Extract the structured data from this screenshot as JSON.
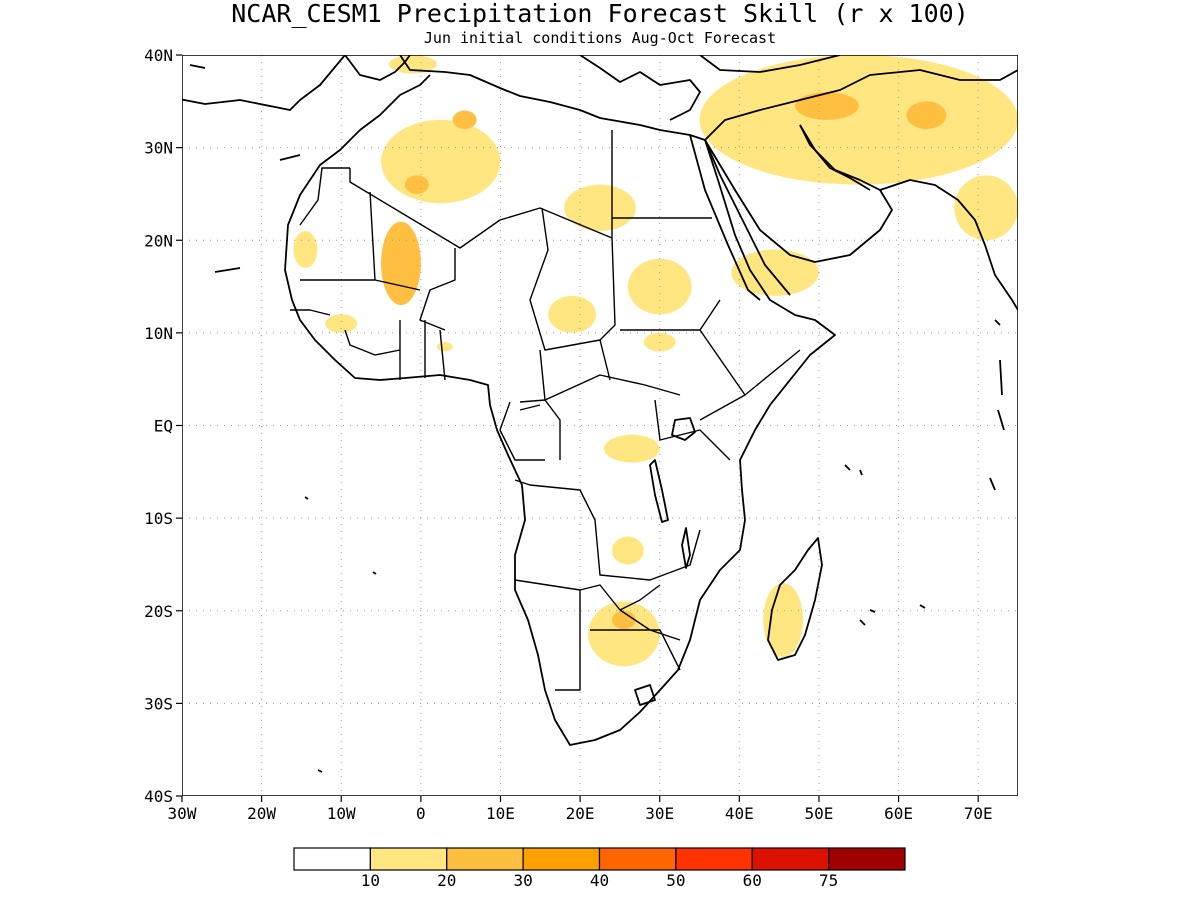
{
  "title": "NCAR_CESM1 Precipitation Forecast Skill (r x 100)",
  "subtitle": "Jun initial conditions  Aug-Oct Forecast",
  "axes": {
    "lon_range": [
      -30,
      75
    ],
    "lat_range": [
      -40,
      40
    ],
    "lon_ticks": [
      {
        "value": -30,
        "label": "30W"
      },
      {
        "value": -20,
        "label": "20W"
      },
      {
        "value": -10,
        "label": "10W"
      },
      {
        "value": 0,
        "label": "0"
      },
      {
        "value": 10,
        "label": "10E"
      },
      {
        "value": 20,
        "label": "20E"
      },
      {
        "value": 30,
        "label": "30E"
      },
      {
        "value": 40,
        "label": "40E"
      },
      {
        "value": 50,
        "label": "50E"
      },
      {
        "value": 60,
        "label": "60E"
      },
      {
        "value": 70,
        "label": "70E"
      }
    ],
    "lat_ticks": [
      {
        "value": 40,
        "label": "40N"
      },
      {
        "value": 30,
        "label": "30N"
      },
      {
        "value": 20,
        "label": "20N"
      },
      {
        "value": 10,
        "label": "10N"
      },
      {
        "value": 0,
        "label": "EQ"
      },
      {
        "value": -10,
        "label": "10S"
      },
      {
        "value": -20,
        "label": "20S"
      },
      {
        "value": -30,
        "label": "30S"
      },
      {
        "value": -40,
        "label": "40S"
      }
    ],
    "grid": true
  },
  "colorbar": {
    "colors": [
      "#ffffff",
      "#ffe680",
      "#ffbf40",
      "#ff9f00",
      "#ff6600",
      "#ff3300",
      "#dd1100",
      "#a00000"
    ],
    "labels": [
      "10",
      "20",
      "30",
      "40",
      "50",
      "60",
      "75"
    ]
  },
  "chart_data": {
    "type": "heatmap",
    "title": "NCAR_CESM1 Precipitation Forecast Skill (r x 100)",
    "subtitle": "Jun initial conditions  Aug-Oct Forecast",
    "region": {
      "lon": [
        -30,
        75
      ],
      "lat": [
        -40,
        40
      ]
    },
    "levels": [
      10,
      20,
      30,
      40,
      50,
      60,
      75
    ],
    "skill_regions": [
      {
        "lon": [
          -5,
          10
        ],
        "lat": [
          24,
          33
        ],
        "value": 15
      },
      {
        "lon": [
          -2,
          1
        ],
        "lat": [
          25,
          27
        ],
        "value": 25
      },
      {
        "lon": [
          4,
          7
        ],
        "lat": [
          32,
          34
        ],
        "value": 25
      },
      {
        "lon": [
          -4,
          2
        ],
        "lat": [
          38,
          40
        ],
        "value": 15
      },
      {
        "lon": [
          18,
          27
        ],
        "lat": [
          21,
          26
        ],
        "value": 15
      },
      {
        "lon": [
          -5,
          0
        ],
        "lat": [
          13,
          22
        ],
        "value": 20
      },
      {
        "lon": [
          -2,
          0
        ],
        "lat": [
          16,
          18
        ],
        "value": 25
      },
      {
        "lon": [
          -16,
          -13
        ],
        "lat": [
          17,
          21
        ],
        "value": 15
      },
      {
        "lon": [
          -12,
          -8
        ],
        "lat": [
          10,
          12
        ],
        "value": 15
      },
      {
        "lon": [
          2,
          4
        ],
        "lat": [
          8,
          9
        ],
        "value": 15
      },
      {
        "lon": [
          16,
          22
        ],
        "lat": [
          10,
          14
        ],
        "value": 15
      },
      {
        "lon": [
          26,
          34
        ],
        "lat": [
          12,
          18
        ],
        "value": 15
      },
      {
        "lon": [
          28,
          32
        ],
        "lat": [
          8,
          10
        ],
        "value": 15
      },
      {
        "lon": [
          39,
          50
        ],
        "lat": [
          14,
          19
        ],
        "value": 15
      },
      {
        "lon": [
          23,
          30
        ],
        "lat": [
          -4,
          -1
        ],
        "value": 15
      },
      {
        "lon": [
          24,
          28
        ],
        "lat": [
          -15,
          -12
        ],
        "value": 15
      },
      {
        "lon": [
          21,
          30
        ],
        "lat": [
          -26,
          -19
        ],
        "value": 15
      },
      {
        "lon": [
          24,
          27
        ],
        "lat": [
          -22,
          -20
        ],
        "value": 25
      },
      {
        "lon": [
          43,
          48
        ],
        "lat": [
          -25,
          -17
        ],
        "value": 15
      },
      {
        "lon": [
          35,
          75
        ],
        "lat": [
          26,
          40
        ],
        "value": 15
      },
      {
        "lon": [
          47,
          55
        ],
        "lat": [
          33,
          36
        ],
        "value": 25
      },
      {
        "lon": [
          61,
          66
        ],
        "lat": [
          32,
          35
        ],
        "value": 25
      },
      {
        "lon": [
          67,
          75
        ],
        "lat": [
          20,
          27
        ],
        "value": 15
      }
    ]
  }
}
